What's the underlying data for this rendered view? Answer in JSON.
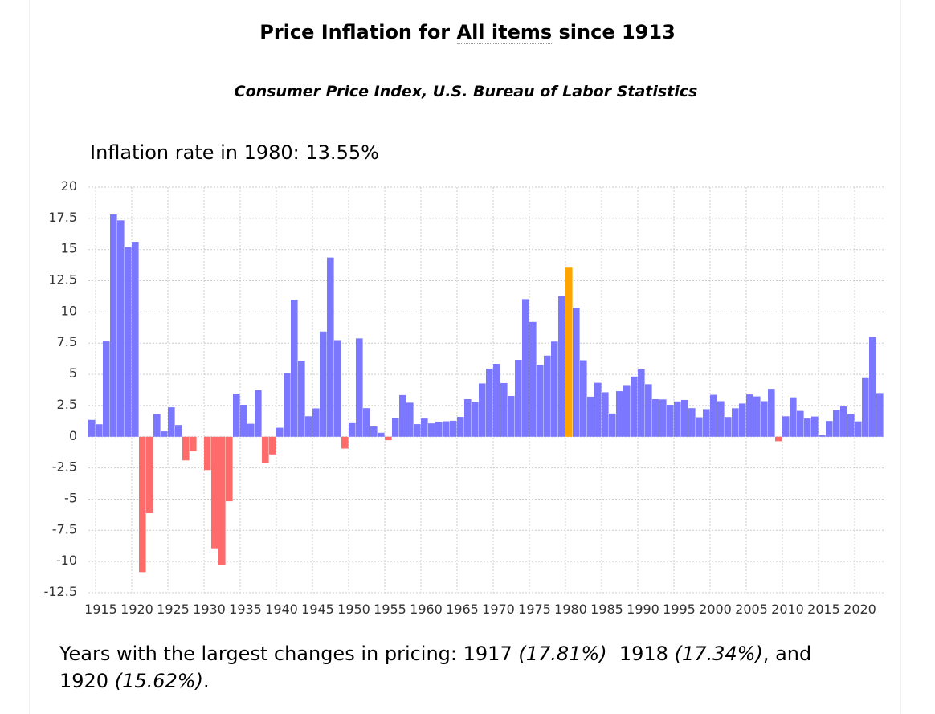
{
  "header": {
    "title_prefix": "Price Inflation for ",
    "title_link": "All items",
    "title_suffix": " since 1913",
    "subtitle": "Consumer Price Index, U.S. Bureau of Labor Statistics"
  },
  "highlight": {
    "label": "Inflation rate in 1980: 13.55%"
  },
  "footer": {
    "prefix": "Years with the largest changes in pricing: ",
    "y1": "1917",
    "v1": "(17.81%)",
    "y2": "1918",
    "v2": "(17.34%)",
    "sep": ", and ",
    "y3": "1920",
    "v3": "(15.62%)",
    "end": "."
  },
  "colors": {
    "positive": "#7b78ff",
    "negative": "#ff6b6b",
    "highlight": "#ffa500",
    "grid": "#cccccc"
  },
  "chart_data": {
    "type": "bar",
    "x": [
      1914,
      1915,
      1916,
      1917,
      1918,
      1919,
      1920,
      1921,
      1922,
      1923,
      1924,
      1925,
      1926,
      1927,
      1928,
      1929,
      1930,
      1931,
      1932,
      1933,
      1934,
      1935,
      1936,
      1937,
      1938,
      1939,
      1940,
      1941,
      1942,
      1943,
      1944,
      1945,
      1946,
      1947,
      1948,
      1949,
      1950,
      1951,
      1952,
      1953,
      1954,
      1955,
      1956,
      1957,
      1958,
      1959,
      1960,
      1961,
      1962,
      1963,
      1964,
      1965,
      1966,
      1967,
      1968,
      1969,
      1970,
      1971,
      1972,
      1973,
      1974,
      1975,
      1976,
      1977,
      1978,
      1979,
      1980,
      1981,
      1982,
      1983,
      1984,
      1985,
      1986,
      1987,
      1988,
      1989,
      1990,
      1991,
      1992,
      1993,
      1994,
      1995,
      1996,
      1997,
      1998,
      1999,
      2000,
      2001,
      2002,
      2003,
      2004,
      2005,
      2006,
      2007,
      2008,
      2009,
      2010,
      2011,
      2012,
      2013,
      2014,
      2015,
      2016,
      2017,
      2018,
      2019,
      2020,
      2021,
      2022,
      2023
    ],
    "values": [
      1.35,
      1.0,
      7.64,
      17.81,
      17.34,
      15.2,
      15.62,
      -10.85,
      -6.13,
      1.82,
      0.43,
      2.36,
      0.94,
      -1.9,
      -1.17,
      0,
      -2.67,
      -8.94,
      -10.31,
      -5.17,
      3.45,
      2.56,
      1.04,
      3.73,
      -2.08,
      -1.42,
      0.72,
      5.11,
      10.97,
      6.08,
      1.64,
      2.27,
      8.43,
      14.36,
      7.74,
      -0.95,
      1.09,
      7.88,
      2.29,
      0.82,
      0.32,
      -0.28,
      1.52,
      3.34,
      2.73,
      1.01,
      1.46,
      1.07,
      1.2,
      1.24,
      1.28,
      1.59,
      3.01,
      2.78,
      4.27,
      5.46,
      5.84,
      4.3,
      3.27,
      6.16,
      11.03,
      9.2,
      5.75,
      6.5,
      7.63,
      11.25,
      13.55,
      10.33,
      6.13,
      3.21,
      4.32,
      3.56,
      1.86,
      3.65,
      4.14,
      4.82,
      5.4,
      4.21,
      3.01,
      2.99,
      2.56,
      2.83,
      2.95,
      2.29,
      1.56,
      2.21,
      3.36,
      2.85,
      1.58,
      2.28,
      2.66,
      3.39,
      3.23,
      2.85,
      3.84,
      -0.36,
      1.64,
      3.16,
      2.07,
      1.46,
      1.62,
      0.12,
      1.26,
      2.13,
      2.44,
      1.81,
      1.23,
      4.7,
      8.0,
      3.5
    ],
    "highlight_year": 1980,
    "ylim": [
      -12.5,
      20
    ],
    "yticks": [
      "20",
      "17.5",
      "15",
      "12.5",
      "10",
      "7.5",
      "5",
      "2.5",
      "0",
      "-2.5",
      "-5",
      "-7.5",
      "-10",
      "-12.5"
    ],
    "xticks": [
      "1915",
      "1920",
      "1925",
      "1930",
      "1935",
      "1940",
      "1945",
      "1950",
      "1955",
      "1960",
      "1965",
      "1970",
      "1975",
      "1980",
      "1985",
      "1990",
      "1995",
      "2000",
      "2005",
      "2010",
      "2015",
      "2020"
    ],
    "grid": true,
    "legend": "none"
  }
}
